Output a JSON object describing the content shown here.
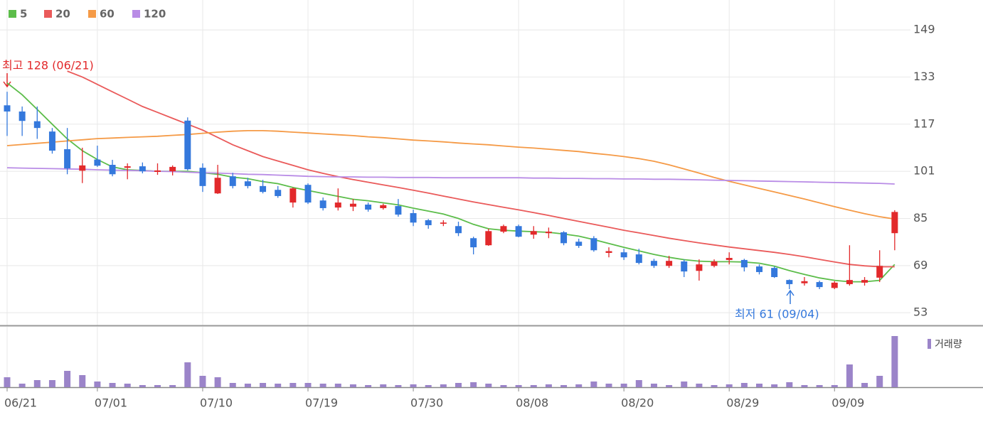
{
  "chart_data": {
    "type": "candlestick",
    "categories": [
      "06/21",
      null,
      null,
      null,
      null,
      null,
      "07/01",
      null,
      null,
      null,
      null,
      null,
      null,
      "07/10",
      null,
      null,
      null,
      null,
      null,
      null,
      "07/19",
      null,
      null,
      null,
      null,
      null,
      null,
      "07/30",
      null,
      null,
      null,
      null,
      null,
      null,
      "08/08",
      null,
      null,
      null,
      null,
      null,
      null,
      "08/20",
      null,
      null,
      null,
      null,
      null,
      null,
      "08/29",
      null,
      null,
      null,
      null,
      null,
      null,
      "09/09",
      null,
      null,
      null,
      null
    ],
    "ohlc": {
      "up_color": "#e2292b",
      "down_color": "#3478dc",
      "open": [
        123.4,
        121.3,
        118,
        114.5,
        108.5,
        101.2,
        105,
        103.2,
        102.2,
        102.7,
        100.8,
        101,
        118.2,
        102.2,
        93.5,
        99.3,
        97.6,
        96,
        94.7,
        90.4,
        96.4,
        91.1,
        88.7,
        89,
        89.7,
        88.5,
        89.2,
        86.8,
        84.4,
        83.2,
        82.4,
        78.3,
        75.9,
        80.5,
        82.4,
        79.5,
        80,
        80.3,
        77.1,
        78.3,
        73.3,
        73.5,
        72.8,
        70.6,
        68.9,
        70.4,
        67.2,
        68.9,
        70.9,
        70.9,
        68.7,
        68.2,
        64.1,
        63,
        63.4,
        61.4,
        62.7,
        63.2,
        64.9,
        80
      ],
      "high": [
        128,
        123,
        123,
        115.7,
        115.7,
        109,
        109.7,
        104.9,
        103.7,
        104,
        103.7,
        103,
        119.3,
        103.7,
        103.2,
        100.5,
        98.8,
        98.1,
        96,
        95.5,
        96.9,
        92.1,
        95.2,
        91.6,
        90.4,
        90,
        91.6,
        88,
        84.8,
        84.4,
        83.9,
        78.8,
        81.5,
        82.9,
        82.9,
        82.4,
        81.9,
        80.7,
        78.1,
        79,
        75.2,
        74.7,
        74.7,
        71.3,
        72.3,
        71.1,
        71.1,
        71.1,
        73.5,
        71.3,
        69.4,
        68.7,
        64.3,
        65.1,
        63.9,
        63.7,
        75.9,
        65.1,
        74.2,
        87.8
      ],
      "low": [
        113,
        113,
        112,
        107,
        100,
        97,
        102.5,
        99.3,
        98.3,
        100.3,
        99.8,
        99.6,
        101.3,
        94,
        93.3,
        95.2,
        95.2,
        93.5,
        92,
        88.7,
        89.9,
        87.7,
        87.7,
        87.5,
        87.3,
        88,
        85.6,
        82.4,
        81.5,
        82.4,
        79,
        72.8,
        75.7,
        80,
        78.6,
        78.1,
        78.3,
        75.9,
        75,
        73.7,
        71.8,
        70.9,
        69.4,
        68.2,
        68.2,
        65.1,
        63.9,
        68.4,
        69.4,
        67,
        66,
        64.8,
        61,
        62.2,
        61,
        61,
        62.2,
        62.2,
        63.4,
        74.2
      ],
      "close": [
        121.3,
        118.1,
        115.7,
        108,
        102,
        103,
        102.9,
        100,
        102.7,
        101,
        101.3,
        102.5,
        101.7,
        96,
        98.8,
        96,
        96,
        94,
        92.6,
        95.2,
        90.4,
        88.5,
        90.4,
        90,
        88,
        89.5,
        86.3,
        83.6,
        82.7,
        83.6,
        80,
        75.2,
        80.7,
        82.4,
        78.8,
        80.7,
        80.5,
        76.6,
        75.7,
        74.2,
        73.9,
        71.8,
        69.9,
        68.9,
        70.6,
        67,
        69.4,
        70.4,
        71.6,
        68.4,
        66.8,
        65.1,
        62.7,
        63.7,
        61.7,
        63.2,
        64.1,
        64.1,
        68.9,
        87.2
      ]
    },
    "series": [
      {
        "name": "5",
        "color": "#5cbd4a",
        "values": [
          131,
          127,
          122,
          117,
          112,
          108,
          105,
          102.5,
          101.5,
          101.3,
          101,
          101,
          101,
          100.5,
          100,
          99,
          98.5,
          97.5,
          96.8,
          95.5,
          94.5,
          93.5,
          92.5,
          91.5,
          91,
          90.3,
          89.6,
          88.5,
          87.5,
          86.5,
          85,
          83,
          81.5,
          81,
          80.7,
          80.5,
          80.3,
          79.7,
          79,
          77.8,
          76.5,
          75.2,
          74,
          72.8,
          71.8,
          71,
          70.5,
          70.3,
          70.3,
          70.2,
          69.8,
          68.8,
          67.3,
          66,
          64.8,
          64,
          63.5,
          63.5,
          64,
          69.4
        ]
      },
      {
        "name": "20",
        "color": "#ea5a5a",
        "values": [
          null,
          null,
          null,
          null,
          135,
          133,
          130.5,
          128,
          125.5,
          123,
          121,
          119,
          117,
          115,
          112.5,
          110,
          108,
          106,
          104.5,
          103,
          101.5,
          100.3,
          99.2,
          98.2,
          97.3,
          96.4,
          95.5,
          94.6,
          93.6,
          92.6,
          91.6,
          90.6,
          89.7,
          88.8,
          87.9,
          87,
          86,
          85,
          84,
          83,
          82,
          81,
          80.1,
          79.2,
          78.3,
          77.5,
          76.7,
          76,
          75.3,
          74.7,
          74.1,
          73.5,
          72.8,
          72,
          71.1,
          70.2,
          69.4,
          68.9,
          68.6,
          68.6
        ]
      },
      {
        "name": "60",
        "color": "#f59a46",
        "values": [
          109.7,
          110.1,
          110.5,
          110.9,
          111.3,
          111.7,
          112.1,
          112.3,
          112.5,
          112.7,
          112.9,
          113.2,
          113.5,
          113.9,
          114.3,
          114.6,
          114.8,
          114.8,
          114.6,
          114.3,
          114,
          113.7,
          113.4,
          113.1,
          112.7,
          112.4,
          112,
          111.6,
          111.3,
          111,
          110.6,
          110.3,
          110,
          109.6,
          109.2,
          108.9,
          108.5,
          108.1,
          107.7,
          107.1,
          106.6,
          106,
          105.3,
          104.4,
          103.2,
          101.8,
          100.4,
          98.9,
          97.6,
          96.4,
          95.2,
          94,
          92.8,
          91.6,
          90.3,
          89,
          87.8,
          86.6,
          85.6,
          84.8
        ]
      },
      {
        "name": "120",
        "color": "#b98ce6",
        "values": [
          102.2,
          102.1,
          102,
          101.9,
          101.8,
          101.7,
          101.5,
          101.4,
          101.3,
          101.2,
          101,
          100.9,
          100.7,
          100.5,
          100.4,
          100.2,
          100,
          99.9,
          99.7,
          99.5,
          99.3,
          99.2,
          99.1,
          99.1,
          99,
          99,
          98.9,
          98.9,
          98.9,
          98.8,
          98.8,
          98.8,
          98.8,
          98.8,
          98.8,
          98.7,
          98.7,
          98.6,
          98.6,
          98.5,
          98.5,
          98.4,
          98.4,
          98.3,
          98.3,
          98.2,
          98.1,
          98,
          97.9,
          97.8,
          97.7,
          97.6,
          97.5,
          97.4,
          97.3,
          97.2,
          97.1,
          97,
          96.9,
          96.7
        ]
      }
    ],
    "ylim": [
      48.7,
      149.5
    ],
    "yticks": [
      53,
      69,
      85,
      101,
      117,
      133,
      149
    ],
    "grid": true,
    "volume": {
      "name": "거래량",
      "color": "#9b84c9",
      "ylim": [
        0,
        75
      ],
      "values": [
        14,
        5,
        10,
        10,
        23,
        17,
        8,
        6,
        5,
        3,
        3,
        3,
        35,
        16,
        14,
        6,
        5,
        6,
        5,
        6,
        6,
        5,
        5,
        4,
        3,
        4,
        3,
        4,
        3,
        4,
        6,
        7,
        5,
        3,
        3,
        3,
        4,
        3,
        4,
        8,
        5,
        5,
        10,
        5,
        3,
        8,
        5,
        3,
        4,
        6,
        5,
        4,
        7,
        3,
        3,
        3,
        32,
        6,
        16,
        72
      ]
    },
    "annotations": [
      {
        "text": "최고 128 (06/21)",
        "color": "#e2292b"
      },
      {
        "text": "최저 61 (09/04)",
        "color": "#3478dc"
      }
    ]
  }
}
